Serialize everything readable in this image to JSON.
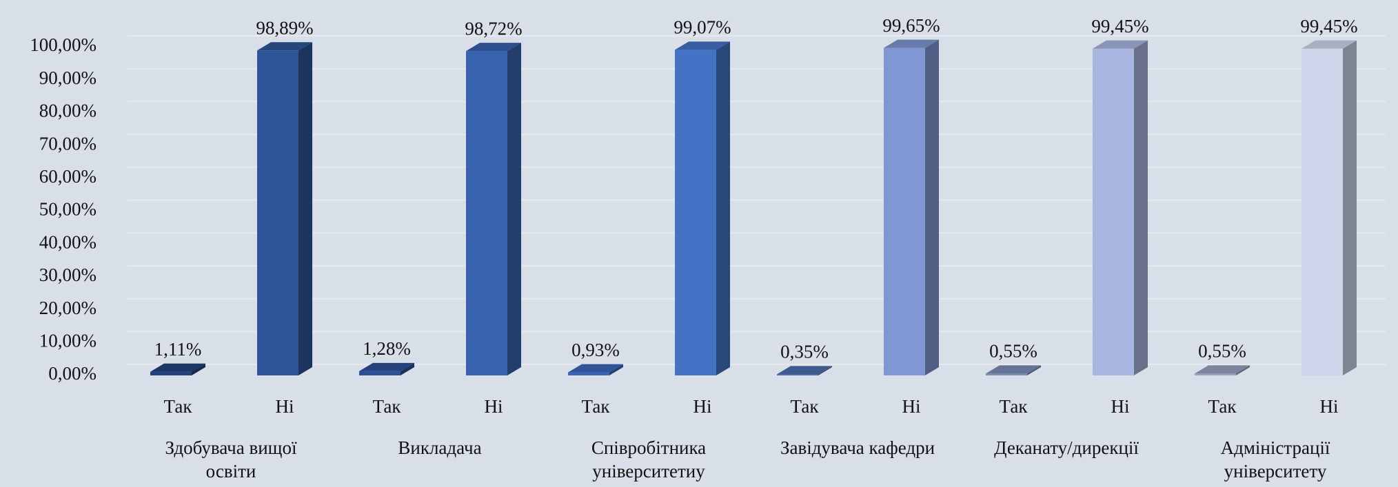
{
  "chart_data": {
    "type": "bar3d",
    "ylim": [
      0,
      100
    ],
    "yticks": [
      {
        "value": 0,
        "label": "0,00%"
      },
      {
        "value": 10,
        "label": "10,00%"
      },
      {
        "value": 20,
        "label": "20,00%"
      },
      {
        "value": 30,
        "label": "30,00%"
      },
      {
        "value": 40,
        "label": "40,00%"
      },
      {
        "value": 50,
        "label": "50,00%"
      },
      {
        "value": 60,
        "label": "60,00%"
      },
      {
        "value": 70,
        "label": "70,00%"
      },
      {
        "value": 80,
        "label": "80,00%"
      },
      {
        "value": 90,
        "label": "90,00%"
      },
      {
        "value": 100,
        "label": "100,00%"
      }
    ],
    "grid": true,
    "groups": [
      {
        "name": "Здобувача вищої освіти",
        "categories": [
          "Так",
          "Ні"
        ],
        "values": [
          1.11,
          98.89
        ],
        "value_labels": [
          "1,11%",
          "98,89%"
        ],
        "colors": [
          "#23417a",
          "#2e5597"
        ]
      },
      {
        "name": "Викладача",
        "categories": [
          "Так",
          "Ні"
        ],
        "values": [
          1.28,
          98.72
        ],
        "value_labels": [
          "1,28%",
          "98,72%"
        ],
        "colors": [
          "#2c5196",
          "#3862ae"
        ]
      },
      {
        "name": "Співробітника університетиу",
        "categories": [
          "Так",
          "Ні"
        ],
        "values": [
          0.93,
          99.07
        ],
        "value_labels": [
          "0,93%",
          "99,07%"
        ],
        "colors": [
          "#3a66b8",
          "#4472c4"
        ]
      },
      {
        "name": "Завідувача кафедри",
        "categories": [
          "Так",
          "Ні"
        ],
        "values": [
          0.35,
          99.65
        ],
        "value_labels": [
          "0,35%",
          "99,65%"
        ],
        "colors": [
          "#4d6cad",
          "#7f97d2"
        ]
      },
      {
        "name": "Деканату/дирекції",
        "categories": [
          "Так",
          "Ні"
        ],
        "values": [
          0.55,
          99.45
        ],
        "value_labels": [
          "0,55%",
          "99,45%"
        ],
        "colors": [
          "#7b8cb7",
          "#a9b6df"
        ]
      },
      {
        "name": "Адміністрації університету",
        "categories": [
          "Так",
          "Ні"
        ],
        "values": [
          0.55,
          99.45
        ],
        "value_labels": [
          "0,55%",
          "99,45%"
        ],
        "colors": [
          "#97a2c0",
          "#ccd5ea"
        ]
      }
    ]
  }
}
